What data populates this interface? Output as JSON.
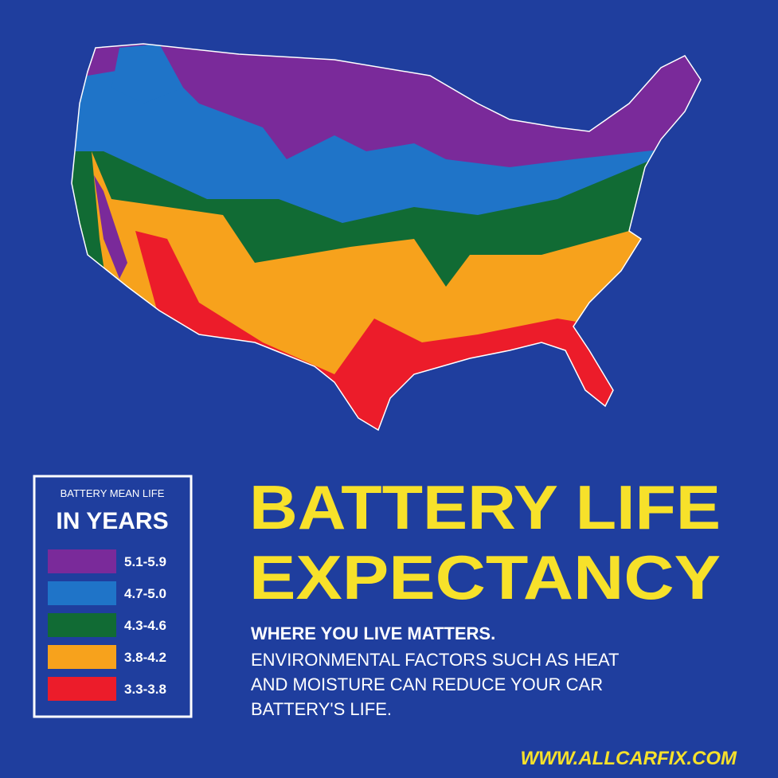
{
  "legend": {
    "heading": "BATTERY MEAN LIFE",
    "title": "IN YEARS",
    "items": [
      {
        "label": "5.1-5.9",
        "color": "#7a2a9a"
      },
      {
        "label": "4.7-5.0",
        "color": "#1f74c8"
      },
      {
        "label": "4.3-4.6",
        "color": "#116b34"
      },
      {
        "label": "3.8-4.2",
        "color": "#f7a21c"
      },
      {
        "label": "3.3-3.8",
        "color": "#ec1c2a"
      }
    ]
  },
  "title_lines": [
    "BATTERY LIFE",
    "EXPECTANCY"
  ],
  "subtitle": "WHERE YOU LIVE MATTERS.",
  "body_lines": [
    "ENVIRONMENTAL FACTORS SUCH AS HEAT",
    "AND MOISTURE CAN REDUCE YOUR CAR",
    "BATTERY'S LIFE."
  ],
  "url": "WWW.ALLCARFIX.COM"
}
